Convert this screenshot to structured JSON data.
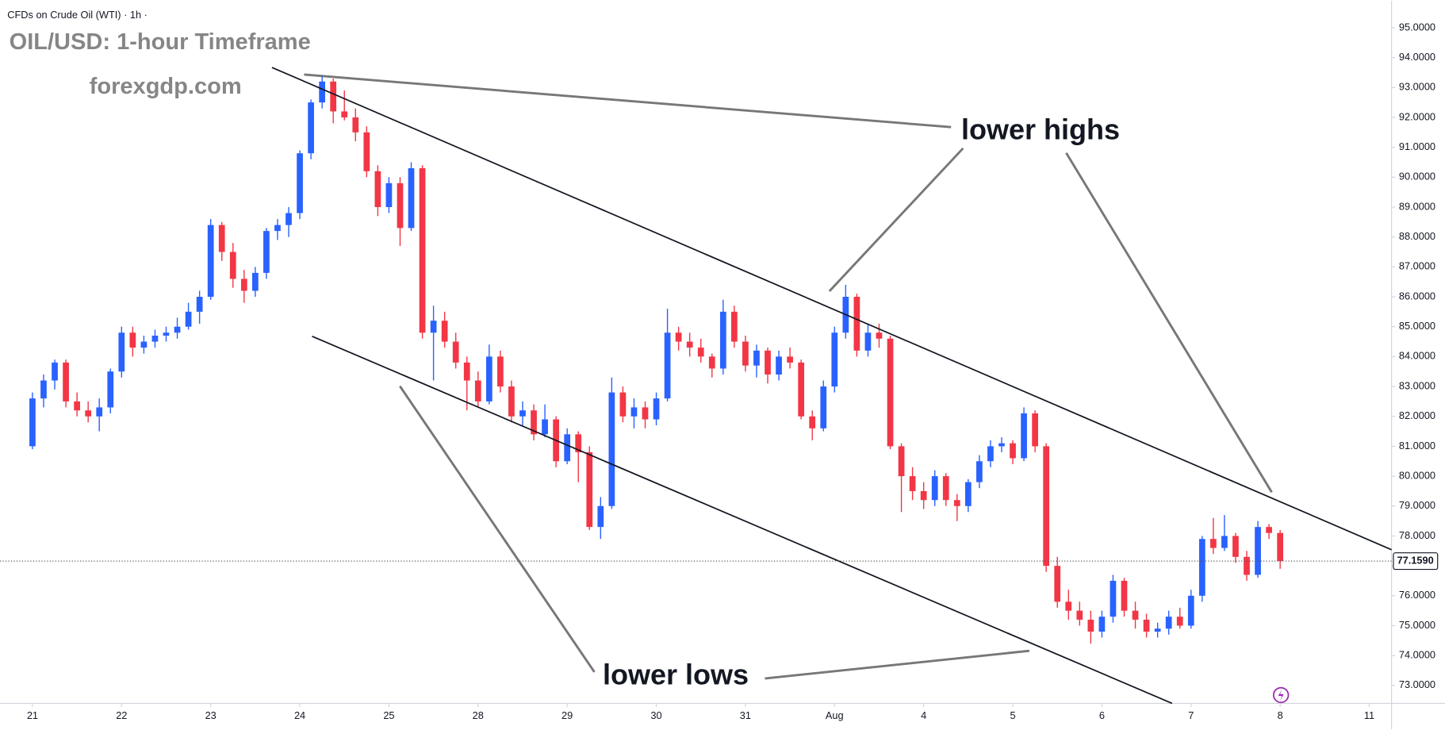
{
  "chart_data": {
    "type": "candlestick",
    "header": "CFDs on Crude Oil (WTI) · 1h ·",
    "title": "OIL/USD: 1-hour Timeframe",
    "subtitle": "forexgdp.com",
    "annotations": [
      "lower highs",
      "lower lows"
    ],
    "up_color": "#2962ff",
    "down_color": "#f23645",
    "xlim": [
      -2.5,
      122
    ],
    "ylim": [
      72.4,
      95.9
    ],
    "xticks": [
      {
        "value": 0,
        "label": "21"
      },
      {
        "value": 8,
        "label": "22"
      },
      {
        "value": 16,
        "label": "23"
      },
      {
        "value": 24,
        "label": "24"
      },
      {
        "value": 32,
        "label": "25"
      },
      {
        "value": 40,
        "label": "28"
      },
      {
        "value": 48,
        "label": "29"
      },
      {
        "value": 56,
        "label": "30"
      },
      {
        "value": 64,
        "label": "31"
      },
      {
        "value": 72,
        "label": "Aug"
      },
      {
        "value": 80,
        "label": "4"
      },
      {
        "value": 88,
        "label": "5"
      },
      {
        "value": 96,
        "label": "6"
      },
      {
        "value": 104,
        "label": "7"
      },
      {
        "value": 112,
        "label": "8"
      },
      {
        "value": 120,
        "label": "11"
      }
    ],
    "yticks": [
      {
        "value": 73,
        "label": "73.0000"
      },
      {
        "value": 74,
        "label": "74.0000"
      },
      {
        "value": 75,
        "label": "75.0000"
      },
      {
        "value": 76,
        "label": "76.0000"
      },
      {
        "value": 77,
        "label": "77.0000"
      },
      {
        "value": 78,
        "label": "78.0000"
      },
      {
        "value": 79,
        "label": "79.0000"
      },
      {
        "value": 80,
        "label": "80.0000"
      },
      {
        "value": 81,
        "label": "81.0000"
      },
      {
        "value": 82,
        "label": "82.0000"
      },
      {
        "value": 83,
        "label": "83.0000"
      },
      {
        "value": 84,
        "label": "84.0000"
      },
      {
        "value": 85,
        "label": "85.0000"
      },
      {
        "value": 86,
        "label": "86.0000"
      },
      {
        "value": 87,
        "label": "87.0000"
      },
      {
        "value": 88,
        "label": "88.0000"
      },
      {
        "value": 89,
        "label": "89.0000"
      },
      {
        "value": 90,
        "label": "90.0000"
      },
      {
        "value": 91,
        "label": "91.0000"
      },
      {
        "value": 92,
        "label": "92.0000"
      },
      {
        "value": 93,
        "label": "93.0000"
      },
      {
        "value": 94,
        "label": "94.0000"
      },
      {
        "value": 95,
        "label": "95.0000"
      }
    ],
    "last_price": {
      "value": 77.159,
      "label": "77.1590"
    },
    "trendlines": [
      {
        "x": [
          21.5,
          122
        ],
        "y": [
          93.67,
          77.54
        ]
      },
      {
        "x": [
          25.1,
          102.3
        ],
        "y": [
          84.68,
          72.4
        ]
      }
    ],
    "candles": [
      [
        81.0,
        82.8,
        80.9,
        82.6
      ],
      [
        82.6,
        83.4,
        82.3,
        83.2
      ],
      [
        83.2,
        83.9,
        82.9,
        83.8
      ],
      [
        83.8,
        83.9,
        82.3,
        82.5
      ],
      [
        82.5,
        82.8,
        82.0,
        82.2
      ],
      [
        82.2,
        82.5,
        81.8,
        82.0
      ],
      [
        82.0,
        82.6,
        81.5,
        82.3
      ],
      [
        82.3,
        83.6,
        82.1,
        83.5
      ],
      [
        83.5,
        85.0,
        83.3,
        84.8
      ],
      [
        84.8,
        85.0,
        84.0,
        84.3
      ],
      [
        84.3,
        84.7,
        84.1,
        84.5
      ],
      [
        84.5,
        84.9,
        84.3,
        84.7
      ],
      [
        84.7,
        85.0,
        84.5,
        84.8
      ],
      [
        84.8,
        85.3,
        84.6,
        85.0
      ],
      [
        85.0,
        85.8,
        84.9,
        85.5
      ],
      [
        85.5,
        86.2,
        85.1,
        86.0
      ],
      [
        86.0,
        88.6,
        85.9,
        88.4
      ],
      [
        88.4,
        88.5,
        87.2,
        87.5
      ],
      [
        87.5,
        87.8,
        86.3,
        86.6
      ],
      [
        86.6,
        86.9,
        85.8,
        86.2
      ],
      [
        86.2,
        87.0,
        86.0,
        86.8
      ],
      [
        86.8,
        88.3,
        86.6,
        88.2
      ],
      [
        88.2,
        88.6,
        87.9,
        88.4
      ],
      [
        88.4,
        89.0,
        88.0,
        88.8
      ],
      [
        88.8,
        90.9,
        88.6,
        90.8
      ],
      [
        90.8,
        92.6,
        90.6,
        92.5
      ],
      [
        92.5,
        93.4,
        92.3,
        93.2
      ],
      [
        93.2,
        93.3,
        91.8,
        92.2
      ],
      [
        92.2,
        92.9,
        91.9,
        92.0
      ],
      [
        92.0,
        92.3,
        91.2,
        91.5
      ],
      [
        91.5,
        91.7,
        90.0,
        90.2
      ],
      [
        90.2,
        90.4,
        88.7,
        89.0
      ],
      [
        89.0,
        90.0,
        88.8,
        89.8
      ],
      [
        89.8,
        90.0,
        87.7,
        88.3
      ],
      [
        88.3,
        90.5,
        88.2,
        90.3
      ],
      [
        90.3,
        90.4,
        84.6,
        84.8
      ],
      [
        84.8,
        85.7,
        83.2,
        85.2
      ],
      [
        85.2,
        85.5,
        84.3,
        84.5
      ],
      [
        84.5,
        84.8,
        83.6,
        83.8
      ],
      [
        83.8,
        84.0,
        82.2,
        83.2
      ],
      [
        83.2,
        83.5,
        82.3,
        82.5
      ],
      [
        82.5,
        84.4,
        82.4,
        84.0
      ],
      [
        84.0,
        84.2,
        82.8,
        83.0
      ],
      [
        83.0,
        83.2,
        81.8,
        82.0
      ],
      [
        82.0,
        82.5,
        81.7,
        82.2
      ],
      [
        82.2,
        82.4,
        81.2,
        81.4
      ],
      [
        81.4,
        82.4,
        81.3,
        81.9
      ],
      [
        81.9,
        82.0,
        80.3,
        80.5
      ],
      [
        80.5,
        81.6,
        80.4,
        81.4
      ],
      [
        81.4,
        81.5,
        79.8,
        80.8
      ],
      [
        80.8,
        81.0,
        78.2,
        78.3
      ],
      [
        78.3,
        79.3,
        77.9,
        79.0
      ],
      [
        79.0,
        83.3,
        78.9,
        82.8
      ],
      [
        82.8,
        83.0,
        81.8,
        82.0
      ],
      [
        82.0,
        82.6,
        81.6,
        82.3
      ],
      [
        82.3,
        82.5,
        81.6,
        81.9
      ],
      [
        81.9,
        82.8,
        81.7,
        82.6
      ],
      [
        82.6,
        85.6,
        82.5,
        84.8
      ],
      [
        84.8,
        85.0,
        84.2,
        84.5
      ],
      [
        84.5,
        84.8,
        84.0,
        84.3
      ],
      [
        84.3,
        84.6,
        83.8,
        84.0
      ],
      [
        84.0,
        84.1,
        83.3,
        83.6
      ],
      [
        83.6,
        85.9,
        83.4,
        85.5
      ],
      [
        85.5,
        85.7,
        84.3,
        84.5
      ],
      [
        84.5,
        84.7,
        83.5,
        83.7
      ],
      [
        83.7,
        84.4,
        83.3,
        84.2
      ],
      [
        84.2,
        84.3,
        83.1,
        83.4
      ],
      [
        83.4,
        84.2,
        83.2,
        84.0
      ],
      [
        84.0,
        84.3,
        83.6,
        83.8
      ],
      [
        83.8,
        83.9,
        81.9,
        82.0
      ],
      [
        82.0,
        82.2,
        81.2,
        81.6
      ],
      [
        81.6,
        83.2,
        81.5,
        83.0
      ],
      [
        83.0,
        85.0,
        82.8,
        84.8
      ],
      [
        84.8,
        86.4,
        84.6,
        86.0
      ],
      [
        86.0,
        86.1,
        84.0,
        84.2
      ],
      [
        84.2,
        85.1,
        84.0,
        84.8
      ],
      [
        84.8,
        85.1,
        84.3,
        84.6
      ],
      [
        84.6,
        84.7,
        80.9,
        81.0
      ],
      [
        81.0,
        81.1,
        78.8,
        80.0
      ],
      [
        80.0,
        80.3,
        79.2,
        79.5
      ],
      [
        79.5,
        79.8,
        78.9,
        79.2
      ],
      [
        79.2,
        80.2,
        79.0,
        80.0
      ],
      [
        80.0,
        80.1,
        79.0,
        79.2
      ],
      [
        79.2,
        79.4,
        78.5,
        79.0
      ],
      [
        79.0,
        79.9,
        78.8,
        79.8
      ],
      [
        79.8,
        80.7,
        79.6,
        80.5
      ],
      [
        80.5,
        81.2,
        80.3,
        81.0
      ],
      [
        81.0,
        81.3,
        80.8,
        81.1
      ],
      [
        81.1,
        81.2,
        80.4,
        80.6
      ],
      [
        80.6,
        82.3,
        80.5,
        82.1
      ],
      [
        82.1,
        82.2,
        80.8,
        81.0
      ],
      [
        81.0,
        81.1,
        76.8,
        77.0
      ],
      [
        77.0,
        77.3,
        75.6,
        75.8
      ],
      [
        75.8,
        76.2,
        75.2,
        75.5
      ],
      [
        75.5,
        75.8,
        75.0,
        75.2
      ],
      [
        75.2,
        75.5,
        74.4,
        74.8
      ],
      [
        74.8,
        75.5,
        74.6,
        75.3
      ],
      [
        75.3,
        76.7,
        75.1,
        76.5
      ],
      [
        76.5,
        76.6,
        75.3,
        75.5
      ],
      [
        75.5,
        75.8,
        74.9,
        75.2
      ],
      [
        75.2,
        75.4,
        74.6,
        74.8
      ],
      [
        74.8,
        75.1,
        74.6,
        74.9
      ],
      [
        74.9,
        75.5,
        74.7,
        75.3
      ],
      [
        75.3,
        75.6,
        74.9,
        75.0
      ],
      [
        75.0,
        76.2,
        74.9,
        76.0
      ],
      [
        76.0,
        78.0,
        75.8,
        77.9
      ],
      [
        77.9,
        78.6,
        77.4,
        77.6
      ],
      [
        77.6,
        78.7,
        77.5,
        78.0
      ],
      [
        78.0,
        78.1,
        77.1,
        77.3
      ],
      [
        77.3,
        77.5,
        76.5,
        76.7
      ],
      [
        76.7,
        78.5,
        76.6,
        78.3
      ],
      [
        78.3,
        78.4,
        77.9,
        78.1
      ],
      [
        78.1,
        78.2,
        76.9,
        77.159
      ]
    ]
  }
}
